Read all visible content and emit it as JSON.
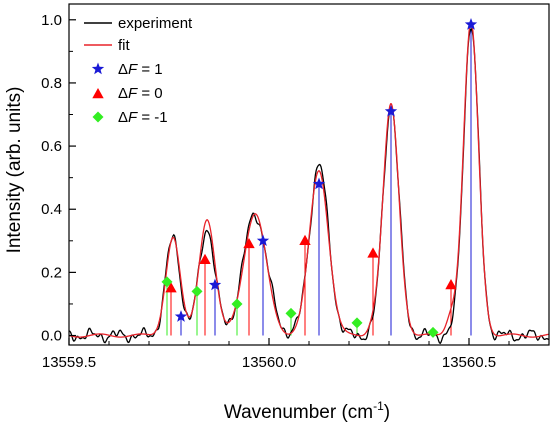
{
  "chart_data": {
    "type": "line",
    "xlabel_main": "Wavenumber (cm",
    "xlabel_sup": "-1",
    "xlabel_close": ")",
    "ylabel": "Intensity (arb. units)",
    "xlim": [
      13559.5,
      13560.7
    ],
    "ylim": [
      -0.03,
      1.05
    ],
    "x_ticks": [
      13559.5,
      13560.0,
      13560.5
    ],
    "x_tick_labels": [
      "13559.5",
      "13560.0",
      "13560.5"
    ],
    "y_ticks": [
      0.0,
      0.2,
      0.4,
      0.6,
      0.8,
      1.0
    ],
    "y_tick_labels": [
      "0.0",
      "0.2",
      "0.4",
      "0.6",
      "0.8",
      "1.0"
    ],
    "grid": false,
    "legend_position": "top-left",
    "colors": {
      "experiment": "#000000",
      "fit": "#e8232a",
      "dF_plus1": "#1a1ad6",
      "dF_0": "#ff0000",
      "dF_minus1": "#33ee22"
    },
    "legend": {
      "experiment": "experiment",
      "fit": "fit",
      "dF_plus1_prefix": "Δ",
      "dF_plus1_var": "F",
      "dF_plus1_value": " = 1",
      "dF_0_prefix": "Δ",
      "dF_0_var": "F",
      "dF_0_value": " = 0",
      "dF_minus1_prefix": "Δ",
      "dF_minus1_var": "F",
      "dF_minus1_value": " = -1"
    },
    "peaks": [
      {
        "center": 13559.76,
        "amp": 0.31,
        "width": 0.018
      },
      {
        "center": 13559.845,
        "amp": 0.34,
        "width": 0.02
      },
      {
        "center": 13559.965,
        "amp": 0.385,
        "width": 0.03
      },
      {
        "center": 13560.125,
        "amp": 0.54,
        "width": 0.024
      },
      {
        "center": 13560.305,
        "amp": 0.73,
        "width": 0.02
      },
      {
        "center": 13560.505,
        "amp": 0.985,
        "width": 0.019
      }
    ],
    "series": [
      {
        "name": "ΔF = 1",
        "marker": "star",
        "points": [
          {
            "x": 13559.78,
            "y": 0.06
          },
          {
            "x": 13559.865,
            "y": 0.16
          },
          {
            "x": 13559.985,
            "y": 0.3
          },
          {
            "x": 13560.125,
            "y": 0.48
          },
          {
            "x": 13560.305,
            "y": 0.71
          },
          {
            "x": 13560.505,
            "y": 0.985
          }
        ]
      },
      {
        "name": "ΔF = 0",
        "marker": "triangle",
        "points": [
          {
            "x": 13559.755,
            "y": 0.15
          },
          {
            "x": 13559.84,
            "y": 0.24
          },
          {
            "x": 13559.95,
            "y": 0.29
          },
          {
            "x": 13560.09,
            "y": 0.3
          },
          {
            "x": 13560.26,
            "y": 0.26
          },
          {
            "x": 13560.455,
            "y": 0.16
          }
        ]
      },
      {
        "name": "ΔF = -1",
        "marker": "diamond",
        "points": [
          {
            "x": 13559.745,
            "y": 0.17
          },
          {
            "x": 13559.82,
            "y": 0.14
          },
          {
            "x": 13559.92,
            "y": 0.1
          },
          {
            "x": 13560.055,
            "y": 0.07
          },
          {
            "x": 13560.22,
            "y": 0.04
          },
          {
            "x": 13560.41,
            "y": 0.01
          }
        ]
      }
    ]
  }
}
